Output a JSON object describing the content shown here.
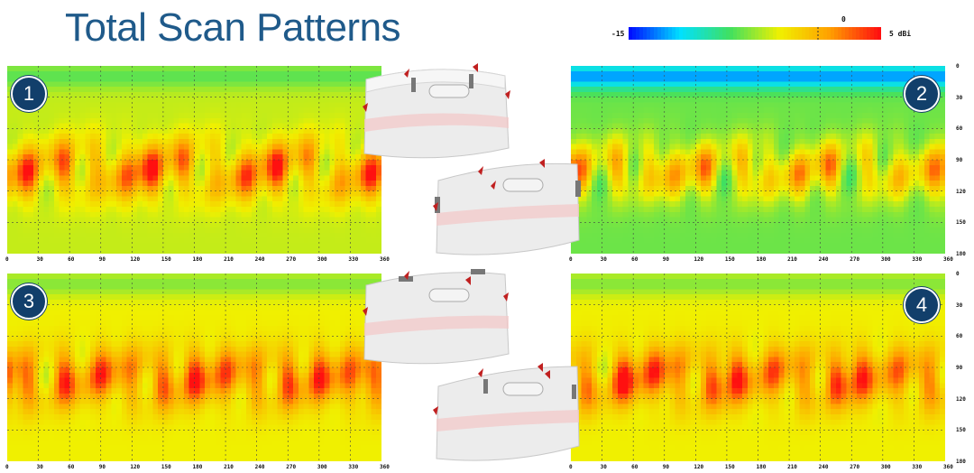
{
  "title": "Total Scan Patterns",
  "colorbar": {
    "min_label": "-15",
    "mid_label": "0",
    "max_label": "5 dBi",
    "min": -15,
    "max": 5,
    "marker": 0,
    "colors": [
      "#0010ff",
      "#00e0ff",
      "#40e060",
      "#f0f000",
      "#ffa000",
      "#ff1010"
    ]
  },
  "chart_data": [
    {
      "type": "heatmap",
      "badge": "1",
      "x_ticks": [
        "0",
        "30",
        "60",
        "90",
        "120",
        "150",
        "180",
        "210",
        "240",
        "270",
        "300",
        "330",
        "360"
      ],
      "y_ticks": [],
      "xlim": [
        0,
        360
      ],
      "ylim": [
        0,
        180
      ],
      "lobe_centers_deg": [
        20,
        55,
        85,
        115,
        140,
        170,
        200,
        230,
        260,
        290,
        320,
        350
      ],
      "peak_dbi": 5,
      "min_dbi": -15,
      "background_dbi": -4
    },
    {
      "type": "heatmap",
      "badge": "2",
      "x_ticks": [
        "0",
        "30",
        "60",
        "90",
        "120",
        "150",
        "180",
        "210",
        "240",
        "270",
        "300",
        "330",
        "360"
      ],
      "y_ticks": [
        "0",
        "30",
        "60",
        "90",
        "120",
        "150",
        "180"
      ],
      "xlim": [
        0,
        360
      ],
      "ylim": [
        0,
        180
      ],
      "lobe_centers_deg": [
        10,
        45,
        75,
        100,
        130,
        165,
        190,
        220,
        250,
        285,
        315,
        350
      ],
      "peak_dbi": 5,
      "min_dbi": -15,
      "background_dbi": -6
    },
    {
      "type": "heatmap",
      "badge": "3",
      "x_ticks": [
        "0",
        "30",
        "60",
        "90",
        "120",
        "150",
        "180",
        "210",
        "240",
        "270",
        "300",
        "330",
        "360"
      ],
      "y_ticks": [],
      "xlim": [
        0,
        360
      ],
      "ylim": [
        0,
        180
      ],
      "lobe_centers_deg": [
        20,
        55,
        90,
        120,
        150,
        180,
        210,
        240,
        270,
        300,
        330,
        355
      ],
      "peak_dbi": 5,
      "min_dbi": -15,
      "background_dbi": -3
    },
    {
      "type": "heatmap",
      "badge": "4",
      "x_ticks": [
        "0",
        "30",
        "60",
        "90",
        "120",
        "150",
        "180",
        "210",
        "240",
        "270",
        "300",
        "330",
        "360"
      ],
      "y_ticks": [
        "0",
        "30",
        "60",
        "90",
        "120",
        "150",
        "180"
      ],
      "xlim": [
        0,
        360
      ],
      "ylim": [
        0,
        180
      ],
      "lobe_centers_deg": [
        15,
        50,
        80,
        105,
        135,
        160,
        195,
        225,
        255,
        280,
        315,
        345
      ],
      "peak_dbi": 5,
      "min_dbi": -15,
      "background_dbi": -3
    }
  ]
}
